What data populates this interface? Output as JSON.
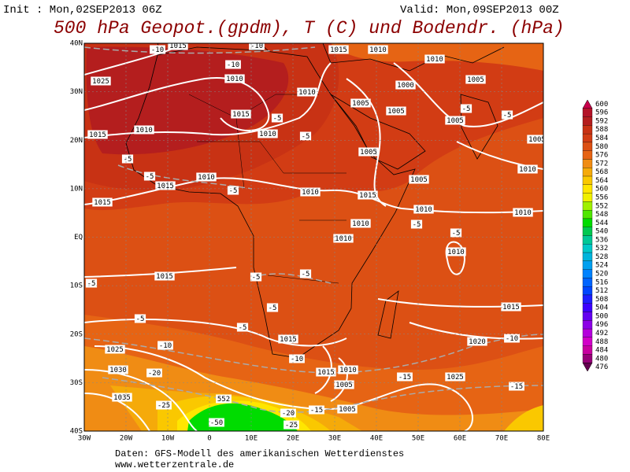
{
  "header": {
    "init": "Init : Mon,02SEP2013 06Z",
    "valid": "Valid: Mon,09SEP2013 00Z",
    "title": "500 hPa Geopot.(gpdm), T (C) und Bodendr. (hPa)"
  },
  "map": {
    "lat_labels": [
      "40N",
      "30N",
      "20N",
      "10N",
      "EQ",
      "10S",
      "20S",
      "30S",
      "40S"
    ],
    "lon_labels": [
      "30W",
      "20W",
      "10W",
      "0",
      "10E",
      "20E",
      "30E",
      "40E",
      "50E",
      "60E",
      "70E",
      "80E"
    ],
    "contour_labels": [
      "1015",
      "1010",
      "1025",
      "1015",
      "1010",
      "1015",
      "1010",
      "1010",
      "1015",
      "1010",
      "1010",
      "1005",
      "1005",
      "1000",
      "1005",
      "1005",
      "1005",
      "1005",
      "1010",
      "1005",
      "1015",
      "1010",
      "1010",
      "1015",
      "1015",
      "1010",
      "1010",
      "1010",
      "1010",
      "1010",
      "1015",
      "1015",
      "1015",
      "1020",
      "1025",
      "1030",
      "1035",
      "1025",
      "1010",
      "1015",
      "1005",
      "1005",
      "-10",
      "-10",
      "-10",
      "-5",
      "-5",
      "-5",
      "-5",
      "-5",
      "-10",
      "-20",
      "-25",
      "-50",
      "-15",
      "-20",
      "-25",
      "-15",
      "-15",
      "-10",
      "-5",
      "-5",
      "-5",
      "-5",
      "-5",
      "-5",
      "-5",
      "-5",
      "-5",
      "-10",
      "-5",
      "552"
    ]
  },
  "colorbar": {
    "levels": [
      600,
      596,
      592,
      588,
      584,
      580,
      576,
      572,
      568,
      564,
      560,
      556,
      552,
      548,
      544,
      540,
      536,
      532,
      528,
      524,
      520,
      516,
      512,
      508,
      504,
      500,
      496,
      492,
      488,
      484,
      480,
      476
    ],
    "colors": [
      "#c8004a",
      "#b41428",
      "#b41e1e",
      "#c83214",
      "#d23c14",
      "#dc5014",
      "#e66414",
      "#f08c14",
      "#f5aa0a",
      "#fac800",
      "#ffe600",
      "#f0f000",
      "#a0f000",
      "#50e600",
      "#00dc00",
      "#00c850",
      "#00c896",
      "#00c8c8",
      "#00b4dc",
      "#00a0f0",
      "#0082ff",
      "#0064ff",
      "#0046ff",
      "#1e1eff",
      "#3c00ff",
      "#6400f0",
      "#8c00e6",
      "#b400dc",
      "#d200c8",
      "#c800a0",
      "#960078",
      "#640050"
    ]
  },
  "footer": {
    "source": "Daten: GFS-Modell des amerikanischen Wetterdienstes",
    "url": "www.wetterzentrale.de"
  }
}
